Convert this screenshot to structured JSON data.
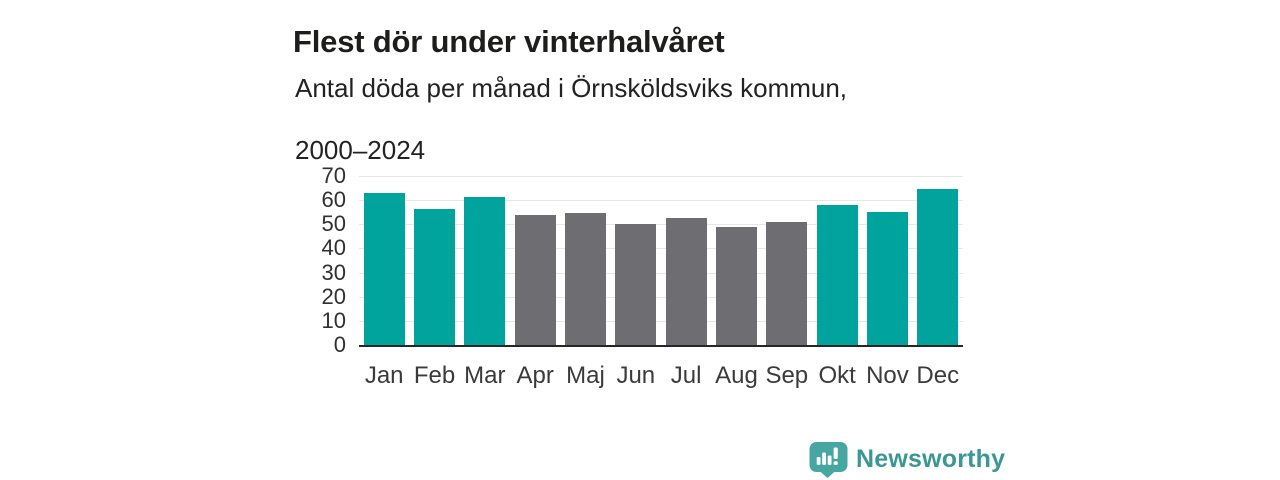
{
  "header": {
    "title": "Flest dör under vinterhalvåret",
    "subtitle_line1": "Antal döda per månad i Örnsköldsviks kommun,",
    "subtitle_line2": "2000–2024"
  },
  "chart_data": {
    "type": "bar",
    "title": "Flest dör under vinterhalvåret",
    "subtitle": "Antal döda per månad i Örnsköldsviks kommun, 2000–2024",
    "categories": [
      "Jan",
      "Feb",
      "Mar",
      "Apr",
      "Maj",
      "Jun",
      "Jul",
      "Aug",
      "Sep",
      "Okt",
      "Nov",
      "Dec"
    ],
    "values": [
      63,
      56.5,
      61.5,
      54,
      54.7,
      50.2,
      52.6,
      49,
      50.8,
      57.8,
      55.1,
      64.7
    ],
    "bar_seasons": [
      "winter",
      "winter",
      "winter",
      "summer",
      "summer",
      "summer",
      "summer",
      "summer",
      "summer",
      "winter",
      "winter",
      "winter"
    ],
    "bar_palette": {
      "winter": "#00a49c",
      "summer": "#6e6d72"
    },
    "ylim": [
      0,
      70
    ],
    "yticks": [
      0,
      10,
      20,
      30,
      40,
      50,
      60,
      70
    ],
    "xlabel": "",
    "ylabel": "",
    "grid": "horizontal-light",
    "legend": "none"
  },
  "branding": {
    "logo_text": "Newsworthy",
    "logo_icon": "newsworthy-speech-bubble-bar-chart-icon",
    "text_color": "#3a9794",
    "icon_color": "#46a6a2"
  },
  "colors": {
    "gridline": "#e7e7e7",
    "axis_line": "#262626",
    "tick_label": "#303030",
    "title": "#1d1d1b"
  }
}
